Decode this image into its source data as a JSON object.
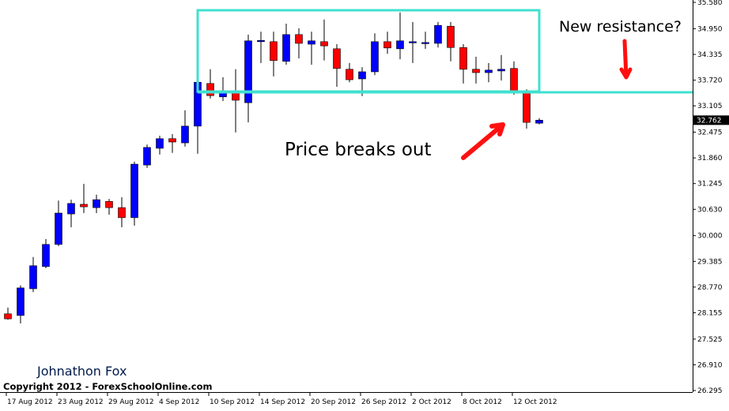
{
  "chart_data": {
    "type": "candlestick",
    "categories": [
      "17 Aug 2012",
      null,
      null,
      null,
      "23 Aug 2012",
      null,
      null,
      null,
      "29 Aug 2012",
      null,
      null,
      null,
      "4 Sep 2012",
      null,
      null,
      null,
      "10 Sep 2012",
      null,
      null,
      null,
      "14 Sep 2012",
      null,
      null,
      null,
      "20 Sep 2012",
      null,
      null,
      null,
      "26 Sep 2012",
      null,
      null,
      null,
      "2 Oct 2012",
      null,
      null,
      null,
      "8 Oct 2012",
      null,
      null,
      null,
      "12 Oct 2012",
      null,
      null
    ],
    "open": [
      28.13,
      28.09,
      28.73,
      29.26,
      29.79,
      30.52,
      30.75,
      30.67,
      30.82,
      30.67,
      30.43,
      31.69,
      32.09,
      32.32,
      32.22,
      32.62,
      33.64,
      33.32,
      33.47,
      33.18,
      34.64,
      34.64,
      34.17,
      34.81,
      34.58,
      34.64,
      34.47,
      33.98,
      33.75,
      33.92,
      34.64,
      34.47,
      34.62,
      34.6,
      34.6,
      35.01,
      34.5,
      33.98,
      33.9,
      33.94,
      34.0,
      33.43,
      32.69
    ],
    "high": [
      28.28,
      28.81,
      29.49,
      29.92,
      30.84,
      30.86,
      31.24,
      30.98,
      30.88,
      30.92,
      31.77,
      32.18,
      32.39,
      32.43,
      33.0,
      33.84,
      33.98,
      33.79,
      33.98,
      34.81,
      34.88,
      34.88,
      35.07,
      34.96,
      34.88,
      35.17,
      34.58,
      34.13,
      34.03,
      34.84,
      34.88,
      35.34,
      35.11,
      34.88,
      35.11,
      35.11,
      34.58,
      34.28,
      34.13,
      34.32,
      34.17,
      33.5,
      32.81
    ],
    "low": [
      27.99,
      27.9,
      28.65,
      29.22,
      29.75,
      30.2,
      30.54,
      30.54,
      30.5,
      30.2,
      30.24,
      31.62,
      31.94,
      31.98,
      32.13,
      31.96,
      33.28,
      33.22,
      32.47,
      32.71,
      34.13,
      33.81,
      34.09,
      34.24,
      34.09,
      34.19,
      33.56,
      33.67,
      33.34,
      33.84,
      34.35,
      34.22,
      34.13,
      34.47,
      34.5,
      34.17,
      33.64,
      33.64,
      33.67,
      33.71,
      33.37,
      32.56,
      32.66
    ],
    "close": [
      28.01,
      28.75,
      29.28,
      29.79,
      30.54,
      30.77,
      30.69,
      30.86,
      30.67,
      30.43,
      31.71,
      32.11,
      32.32,
      32.24,
      32.62,
      33.67,
      33.35,
      33.43,
      33.24,
      34.66,
      34.67,
      34.19,
      34.81,
      34.6,
      34.66,
      34.54,
      34.0,
      33.73,
      33.92,
      34.64,
      34.49,
      34.66,
      34.64,
      34.62,
      35.03,
      34.5,
      33.98,
      33.9,
      33.96,
      33.98,
      33.47,
      32.71,
      32.762
    ],
    "up_color": "#0000ff",
    "down_color": "#ff0000",
    "ylim": [
      26.258,
      35.637
    ],
    "yticks": [
      {
        "value": 35.58,
        "label": "35.580"
      },
      {
        "value": 34.95,
        "label": "34.950"
      },
      34.335,
      {
        "value": 33.72,
        "label": "33.720"
      },
      33.105,
      32.475,
      {
        "value": 31.86,
        "label": "31.860"
      },
      31.245,
      {
        "value": 30.63,
        "label": "30.630"
      },
      {
        "value": 30,
        "label": "30.000"
      },
      29.385,
      {
        "value": 28.77,
        "label": "28.770"
      },
      28.155,
      27.525,
      {
        "value": 26.91,
        "label": "26.910"
      },
      26.295
    ],
    "annotations": [
      "New resistance?",
      "Price breaks out",
      "Johnathon Fox",
      "Copyright 2012 - ForexSchoolOnline.com"
    ]
  }
}
